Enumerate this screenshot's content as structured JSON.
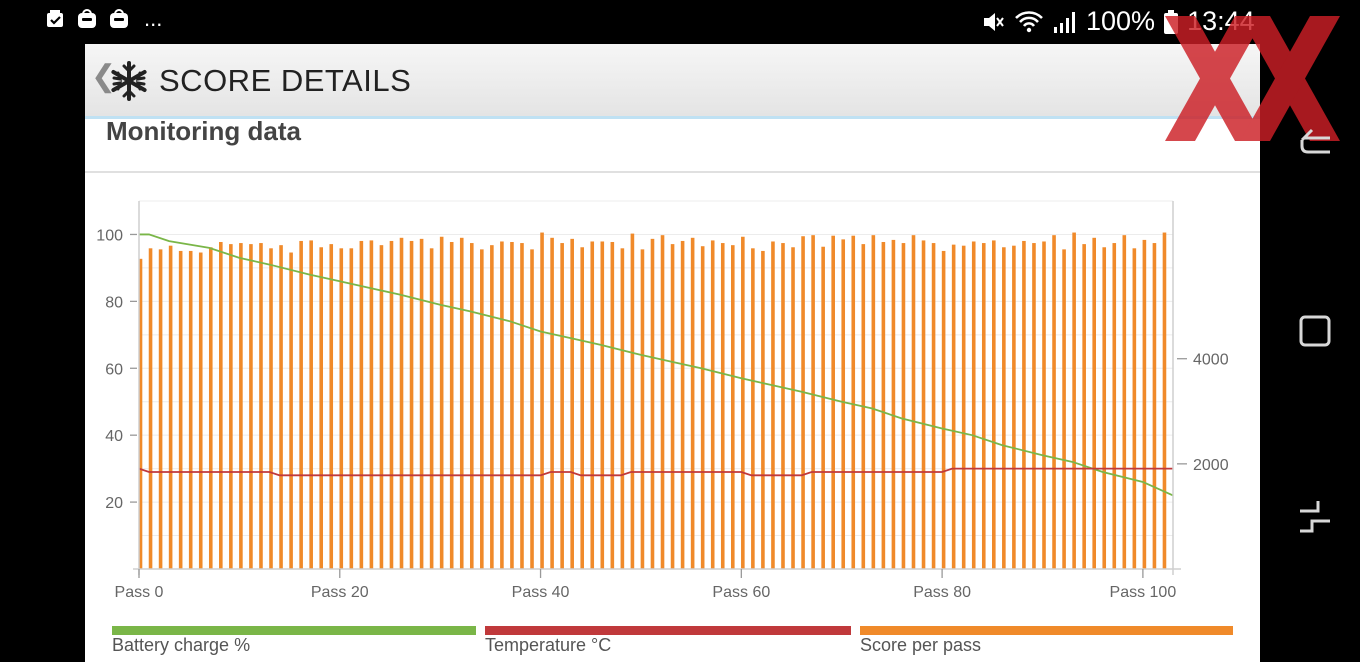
{
  "status_bar": {
    "left_icons": [
      "photo-check-icon",
      "galaxy-store-icon",
      "galaxy-store-icon"
    ],
    "more": "...",
    "battery_text": "100%",
    "time": "13:44",
    "right_icons": [
      "mute-icon",
      "wifi-icon",
      "signal-icon",
      "battery-icon"
    ]
  },
  "app_bar": {
    "back": "❮",
    "title": "SCORE DETAILS"
  },
  "section_title": "Monitoring data",
  "chart_data": {
    "type": "bar",
    "x_tick_labels": [
      "Pass 0",
      "Pass 20",
      "Pass 40",
      "Pass 60",
      "Pass 80",
      "Pass 100"
    ],
    "x_ticks": [
      0,
      20,
      40,
      60,
      80,
      100
    ],
    "xlim": [
      0,
      103
    ],
    "left_axis": {
      "ticks": [
        20,
        40,
        60,
        80,
        100
      ],
      "ylim": [
        0,
        110
      ]
    },
    "right_axis": {
      "ticks": [
        2000,
        4000
      ],
      "ylim": [
        0,
        7000
      ]
    },
    "series": [
      {
        "name": "Battery charge %",
        "type": "line",
        "axis": "left",
        "color": "#7ab648",
        "x": [
          0,
          1,
          3,
          5,
          7,
          10,
          13,
          17,
          20,
          23,
          26,
          30,
          33,
          37,
          40,
          43,
          46,
          50,
          53,
          56,
          60,
          63,
          66,
          70,
          73,
          76,
          80,
          83,
          86,
          90,
          93,
          96,
          100,
          103
        ],
        "values": [
          100,
          100,
          98,
          97,
          96,
          93,
          91,
          88,
          86,
          84,
          82,
          79,
          77,
          74,
          71,
          69,
          67,
          64,
          62,
          60,
          57,
          55,
          53,
          50,
          48,
          45,
          42,
          40,
          37,
          34,
          32,
          29,
          26,
          22
        ]
      },
      {
        "name": "Temperature °C",
        "type": "line",
        "axis": "left",
        "color": "#c0393b",
        "x": [
          0,
          1,
          13,
          14,
          40,
          41,
          43,
          44,
          48,
          49,
          60,
          61,
          66,
          67,
          80,
          81,
          103
        ],
        "values": [
          30,
          29,
          29,
          28,
          28,
          29,
          29,
          28,
          28,
          29,
          29,
          28,
          28,
          29,
          29,
          30,
          30
        ]
      },
      {
        "name": "Score per pass",
        "type": "bar",
        "axis": "right",
        "color": "#f08a2a",
        "values": [
          5900,
          6100,
          6080,
          6150,
          6050,
          6050,
          6020,
          6120,
          6220,
          6180,
          6200,
          6180,
          6200,
          6100,
          6160,
          6020,
          6240,
          6250,
          6120,
          6180,
          6100,
          6100,
          6240,
          6250,
          6160,
          6240,
          6300,
          6240,
          6280,
          6100,
          6320,
          6220,
          6300,
          6200,
          6080,
          6160,
          6230,
          6220,
          6200,
          6080,
          6400,
          6300,
          6200,
          6280,
          6120,
          6230,
          6230,
          6220,
          6100,
          6380,
          6080,
          6280,
          6350,
          6180,
          6240,
          6300,
          6140,
          6250,
          6200,
          6160,
          6320,
          6100,
          6050,
          6230,
          6200,
          6120,
          6330,
          6350,
          6130,
          6340,
          6270,
          6340,
          6180,
          6350,
          6220,
          6260,
          6200,
          6350,
          6250,
          6200,
          6050,
          6170,
          6150,
          6230,
          6200,
          6250,
          6120,
          6150,
          6240,
          6200,
          6230,
          6350,
          6080,
          6400,
          6180,
          6300,
          6120,
          6200,
          6350,
          6100,
          6260,
          6200,
          6400
        ]
      }
    ],
    "grid": true
  },
  "legend": [
    {
      "label": "Battery charge %",
      "color": "#7ab648"
    },
    {
      "label": "Temperature °C",
      "color": "#c0393b"
    },
    {
      "label": "Score per pass",
      "color": "#f08a2a"
    }
  ],
  "nav_bar": {
    "buttons": [
      "back-icon",
      "home-icon",
      "recents-icon"
    ]
  },
  "watermark": {
    "color": "#cc1f26"
  }
}
